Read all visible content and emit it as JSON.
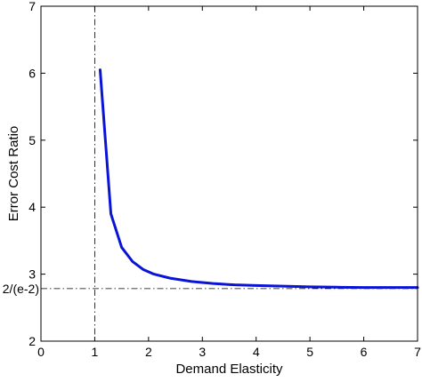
{
  "chart_data": {
    "type": "line",
    "title": "",
    "xlabel": "Demand Elasticity",
    "ylabel": "Error Cost Ratio",
    "xlim": [
      0,
      7
    ],
    "ylim": [
      2,
      7
    ],
    "grid": false,
    "x_ticks": [
      "0",
      "1",
      "2",
      "3",
      "4",
      "5",
      "6",
      "7"
    ],
    "y_ticks": [
      "2",
      "3",
      "4",
      "5",
      "6",
      "7"
    ],
    "series": [
      {
        "color": "#0a14d6",
        "x": [
          1.1,
          1.3,
          1.5,
          1.7,
          1.9,
          2.1,
          2.4,
          2.8,
          3.2,
          3.6,
          4.0,
          4.5,
          5.0,
          5.5,
          6.0,
          6.5,
          7.0
        ],
        "y": [
          6.05,
          3.9,
          3.4,
          3.19,
          3.07,
          3.0,
          2.94,
          2.89,
          2.86,
          2.84,
          2.83,
          2.82,
          2.81,
          2.805,
          2.8,
          2.8,
          2.8
        ]
      }
    ],
    "reference_lines": {
      "vertical": {
        "x": 1
      },
      "horizontal": {
        "y": 2.784,
        "label": "2/(e-2)"
      }
    }
  }
}
